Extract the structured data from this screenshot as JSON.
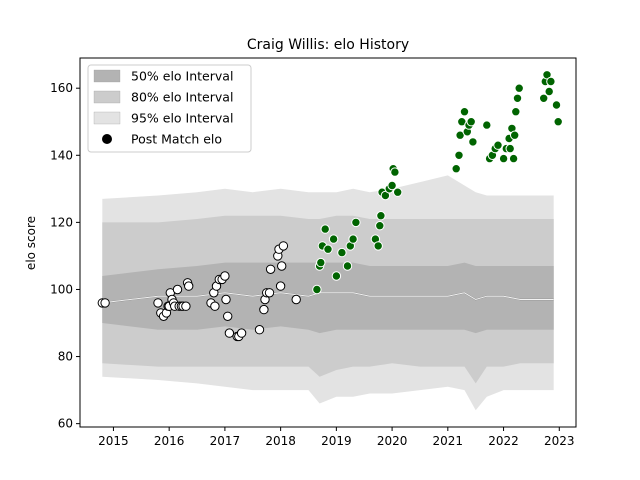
{
  "chart_data": {
    "type": "scatter",
    "title": "Craig Willis: elo History",
    "xlabel": "",
    "ylabel": "elo score",
    "xlim": [
      2014.4,
      2023.3
    ],
    "ylim": [
      59,
      169
    ],
    "xticks": [
      2015,
      2016,
      2017,
      2018,
      2019,
      2020,
      2021,
      2022,
      2023
    ],
    "yticks": [
      60,
      80,
      100,
      120,
      140,
      160
    ],
    "legend": {
      "placement": "upper-left",
      "entries": [
        {
          "label": "50% elo Interval",
          "color": "#b3b3b3",
          "kind": "patch"
        },
        {
          "label": "80% elo Interval",
          "color": "#cccccc",
          "kind": "patch"
        },
        {
          "label": "95% elo Interval",
          "color": "#e3e3e3",
          "kind": "patch"
        },
        {
          "label": "Post Match elo",
          "color": "#000000",
          "kind": "marker"
        }
      ]
    },
    "intervals": {
      "x": [
        2014.8,
        2015.8,
        2016.5,
        2017.0,
        2017.5,
        2018.0,
        2018.5,
        2018.7,
        2019.0,
        2019.3,
        2019.6,
        2020.0,
        2020.5,
        2021.0,
        2021.3,
        2021.5,
        2021.7,
        2022.0,
        2022.3,
        2022.6,
        2022.9
      ],
      "median": [
        96,
        98,
        98,
        99,
        98,
        99,
        98,
        99,
        99,
        99,
        98,
        98,
        98,
        98,
        99,
        97,
        98,
        98,
        97,
        97,
        97
      ],
      "p50": [
        [
          90,
          104
        ],
        [
          88,
          106
        ],
        [
          88,
          107
        ],
        [
          89,
          108
        ],
        [
          88,
          108
        ],
        [
          89,
          108
        ],
        [
          88,
          108
        ],
        [
          87,
          108
        ],
        [
          88,
          108
        ],
        [
          88,
          108
        ],
        [
          88,
          107
        ],
        [
          88,
          107
        ],
        [
          88,
          107
        ],
        [
          88,
          107
        ],
        [
          88,
          108
        ],
        [
          87,
          107
        ],
        [
          88,
          107
        ],
        [
          88,
          107
        ],
        [
          88,
          107
        ],
        [
          88,
          107
        ],
        [
          88,
          107
        ]
      ],
      "p80": [
        [
          78,
          120
        ],
        [
          77,
          120
        ],
        [
          77,
          121
        ],
        [
          77,
          122
        ],
        [
          77,
          122
        ],
        [
          77,
          122
        ],
        [
          77,
          121
        ],
        [
          74,
          121
        ],
        [
          76,
          122
        ],
        [
          77,
          122
        ],
        [
          77,
          121
        ],
        [
          78,
          121
        ],
        [
          77,
          121
        ],
        [
          77,
          121
        ],
        [
          77,
          121
        ],
        [
          72,
          121
        ],
        [
          77,
          121
        ],
        [
          77,
          121
        ],
        [
          78,
          121
        ],
        [
          78,
          121
        ],
        [
          78,
          121
        ]
      ],
      "p95": [
        [
          74,
          127
        ],
        [
          73,
          128
        ],
        [
          72,
          129
        ],
        [
          71,
          130
        ],
        [
          70,
          129
        ],
        [
          70,
          130
        ],
        [
          70,
          129
        ],
        [
          66,
          129
        ],
        [
          68,
          129
        ],
        [
          68,
          130
        ],
        [
          69,
          129
        ],
        [
          69,
          130
        ],
        [
          70,
          132
        ],
        [
          71,
          134
        ],
        [
          70,
          131
        ],
        [
          64,
          129
        ],
        [
          68,
          128
        ],
        [
          70,
          128
        ],
        [
          70,
          128
        ],
        [
          70,
          128
        ],
        [
          70,
          128
        ]
      ]
    },
    "series": [
      {
        "color": "#ffffff",
        "points": [
          [
            2014.8,
            96
          ],
          [
            2014.85,
            96
          ],
          [
            2015.8,
            96
          ],
          [
            2015.85,
            93
          ],
          [
            2015.9,
            92
          ],
          [
            2015.95,
            93
          ],
          [
            2015.98,
            95
          ],
          [
            2016.0,
            95
          ],
          [
            2016.02,
            99
          ],
          [
            2016.05,
            97
          ],
          [
            2016.08,
            96
          ],
          [
            2016.1,
            95
          ],
          [
            2016.15,
            100
          ],
          [
            2016.18,
            95
          ],
          [
            2016.22,
            95
          ],
          [
            2016.25,
            95
          ],
          [
            2016.3,
            95
          ],
          [
            2016.33,
            102
          ],
          [
            2016.35,
            101
          ],
          [
            2016.75,
            96
          ],
          [
            2016.8,
            99
          ],
          [
            2016.82,
            95
          ],
          [
            2016.85,
            101
          ],
          [
            2016.9,
            103
          ],
          [
            2016.95,
            103
          ],
          [
            2017.0,
            104
          ],
          [
            2017.02,
            97
          ],
          [
            2017.05,
            92
          ],
          [
            2017.08,
            87
          ],
          [
            2017.22,
            86
          ],
          [
            2017.25,
            86
          ],
          [
            2017.3,
            87
          ],
          [
            2017.62,
            88
          ],
          [
            2017.7,
            94
          ],
          [
            2017.72,
            97
          ],
          [
            2017.75,
            99
          ],
          [
            2017.8,
            99
          ],
          [
            2017.82,
            106
          ],
          [
            2017.95,
            110
          ],
          [
            2017.97,
            112
          ],
          [
            2018.0,
            101
          ],
          [
            2018.02,
            107
          ],
          [
            2018.05,
            113
          ],
          [
            2018.28,
            97
          ]
        ]
      },
      {
        "color": "#006400",
        "points": [
          [
            2018.65,
            100
          ],
          [
            2018.7,
            107
          ],
          [
            2018.72,
            108
          ],
          [
            2018.75,
            113
          ],
          [
            2018.8,
            118
          ],
          [
            2018.85,
            112
          ],
          [
            2018.95,
            115
          ],
          [
            2019.0,
            104
          ],
          [
            2019.1,
            111
          ],
          [
            2019.2,
            107
          ],
          [
            2019.25,
            113
          ],
          [
            2019.3,
            115
          ],
          [
            2019.35,
            120
          ],
          [
            2019.7,
            115
          ],
          [
            2019.75,
            113
          ],
          [
            2019.78,
            119
          ],
          [
            2019.8,
            122
          ],
          [
            2019.82,
            129
          ],
          [
            2019.88,
            128
          ],
          [
            2019.95,
            130
          ],
          [
            2020.0,
            131
          ],
          [
            2020.02,
            136
          ],
          [
            2020.05,
            135
          ],
          [
            2020.1,
            129
          ],
          [
            2021.15,
            136
          ],
          [
            2021.2,
            140
          ],
          [
            2021.22,
            146
          ],
          [
            2021.25,
            150
          ],
          [
            2021.3,
            153
          ],
          [
            2021.35,
            147
          ],
          [
            2021.38,
            149
          ],
          [
            2021.42,
            150
          ],
          [
            2021.45,
            144
          ],
          [
            2021.7,
            149
          ],
          [
            2021.75,
            139
          ],
          [
            2021.8,
            140
          ],
          [
            2021.85,
            142
          ],
          [
            2021.9,
            143
          ],
          [
            2022.0,
            139
          ],
          [
            2022.05,
            142
          ],
          [
            2022.1,
            145
          ],
          [
            2022.12,
            142
          ],
          [
            2022.15,
            148
          ],
          [
            2022.18,
            139
          ],
          [
            2022.2,
            146
          ],
          [
            2022.22,
            153
          ],
          [
            2022.25,
            157
          ],
          [
            2022.28,
            160
          ],
          [
            2022.72,
            157
          ],
          [
            2022.75,
            162
          ],
          [
            2022.78,
            164
          ],
          [
            2022.82,
            159
          ],
          [
            2022.85,
            162
          ],
          [
            2022.95,
            155
          ],
          [
            2022.98,
            150
          ]
        ]
      }
    ]
  }
}
